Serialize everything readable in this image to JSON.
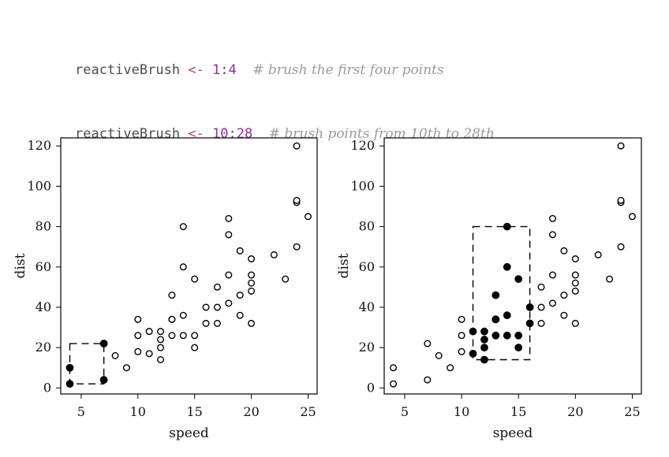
{
  "code": [
    {
      "var": "reactiveBrush",
      "op": "<-",
      "start": "1",
      "sep": ":",
      "end": "4",
      "comment": "# brush the first four points"
    },
    {
      "var": "reactiveBrush",
      "op": "<-",
      "start": "10",
      "sep": ":",
      "end": "28",
      "comment": "# brush points from 10th to 28th"
    }
  ],
  "chart_data": [
    {
      "type": "scatter",
      "xlabel": "speed",
      "ylabel": "dist",
      "xlim": [
        3.2,
        25.8
      ],
      "ylim": [
        -3,
        124
      ],
      "xticks": [
        "5",
        "10",
        "15",
        "20",
        "25"
      ],
      "yticks": [
        "0",
        "20",
        "40",
        "60",
        "80",
        "100",
        "120"
      ],
      "brushed_range": [
        1,
        4
      ],
      "brush_box": {
        "x": [
          4,
          7
        ],
        "y": [
          2,
          22
        ]
      },
      "x": [
        4,
        4,
        7,
        7,
        8,
        9,
        10,
        10,
        10,
        11,
        11,
        12,
        12,
        12,
        12,
        13,
        13,
        13,
        13,
        14,
        14,
        14,
        14,
        15,
        15,
        15,
        16,
        16,
        17,
        17,
        17,
        18,
        18,
        18,
        18,
        19,
        19,
        19,
        20,
        20,
        20,
        20,
        20,
        22,
        23,
        24,
        24,
        24,
        24,
        25
      ],
      "y": [
        2,
        10,
        4,
        22,
        16,
        10,
        18,
        26,
        34,
        17,
        28,
        14,
        20,
        24,
        28,
        26,
        34,
        34,
        46,
        26,
        36,
        60,
        80,
        20,
        26,
        54,
        32,
        40,
        32,
        40,
        50,
        42,
        56,
        76,
        84,
        36,
        46,
        68,
        32,
        48,
        52,
        56,
        64,
        66,
        54,
        70,
        92,
        93,
        120,
        85
      ]
    },
    {
      "type": "scatter",
      "xlabel": "speed",
      "ylabel": "dist",
      "xlim": [
        3.2,
        25.8
      ],
      "ylim": [
        -3,
        124
      ],
      "xticks": [
        "5",
        "10",
        "15",
        "20",
        "25"
      ],
      "yticks": [
        "0",
        "20",
        "40",
        "60",
        "80",
        "100",
        "120"
      ],
      "brushed_range": [
        10,
        28
      ],
      "brush_box": {
        "x": [
          11,
          16
        ],
        "y": [
          14,
          80
        ]
      },
      "x": [
        4,
        4,
        7,
        7,
        8,
        9,
        10,
        10,
        10,
        11,
        11,
        12,
        12,
        12,
        12,
        13,
        13,
        13,
        13,
        14,
        14,
        14,
        14,
        15,
        15,
        15,
        16,
        16,
        17,
        17,
        17,
        18,
        18,
        18,
        18,
        19,
        19,
        19,
        20,
        20,
        20,
        20,
        20,
        22,
        23,
        24,
        24,
        24,
        24,
        25
      ],
      "y": [
        2,
        10,
        4,
        22,
        16,
        10,
        18,
        26,
        34,
        17,
        28,
        14,
        20,
        24,
        28,
        26,
        34,
        34,
        46,
        26,
        36,
        60,
        80,
        20,
        26,
        54,
        32,
        40,
        32,
        40,
        50,
        42,
        56,
        76,
        84,
        36,
        46,
        68,
        32,
        48,
        52,
        56,
        64,
        66,
        54,
        70,
        92,
        93,
        120,
        85
      ]
    }
  ]
}
